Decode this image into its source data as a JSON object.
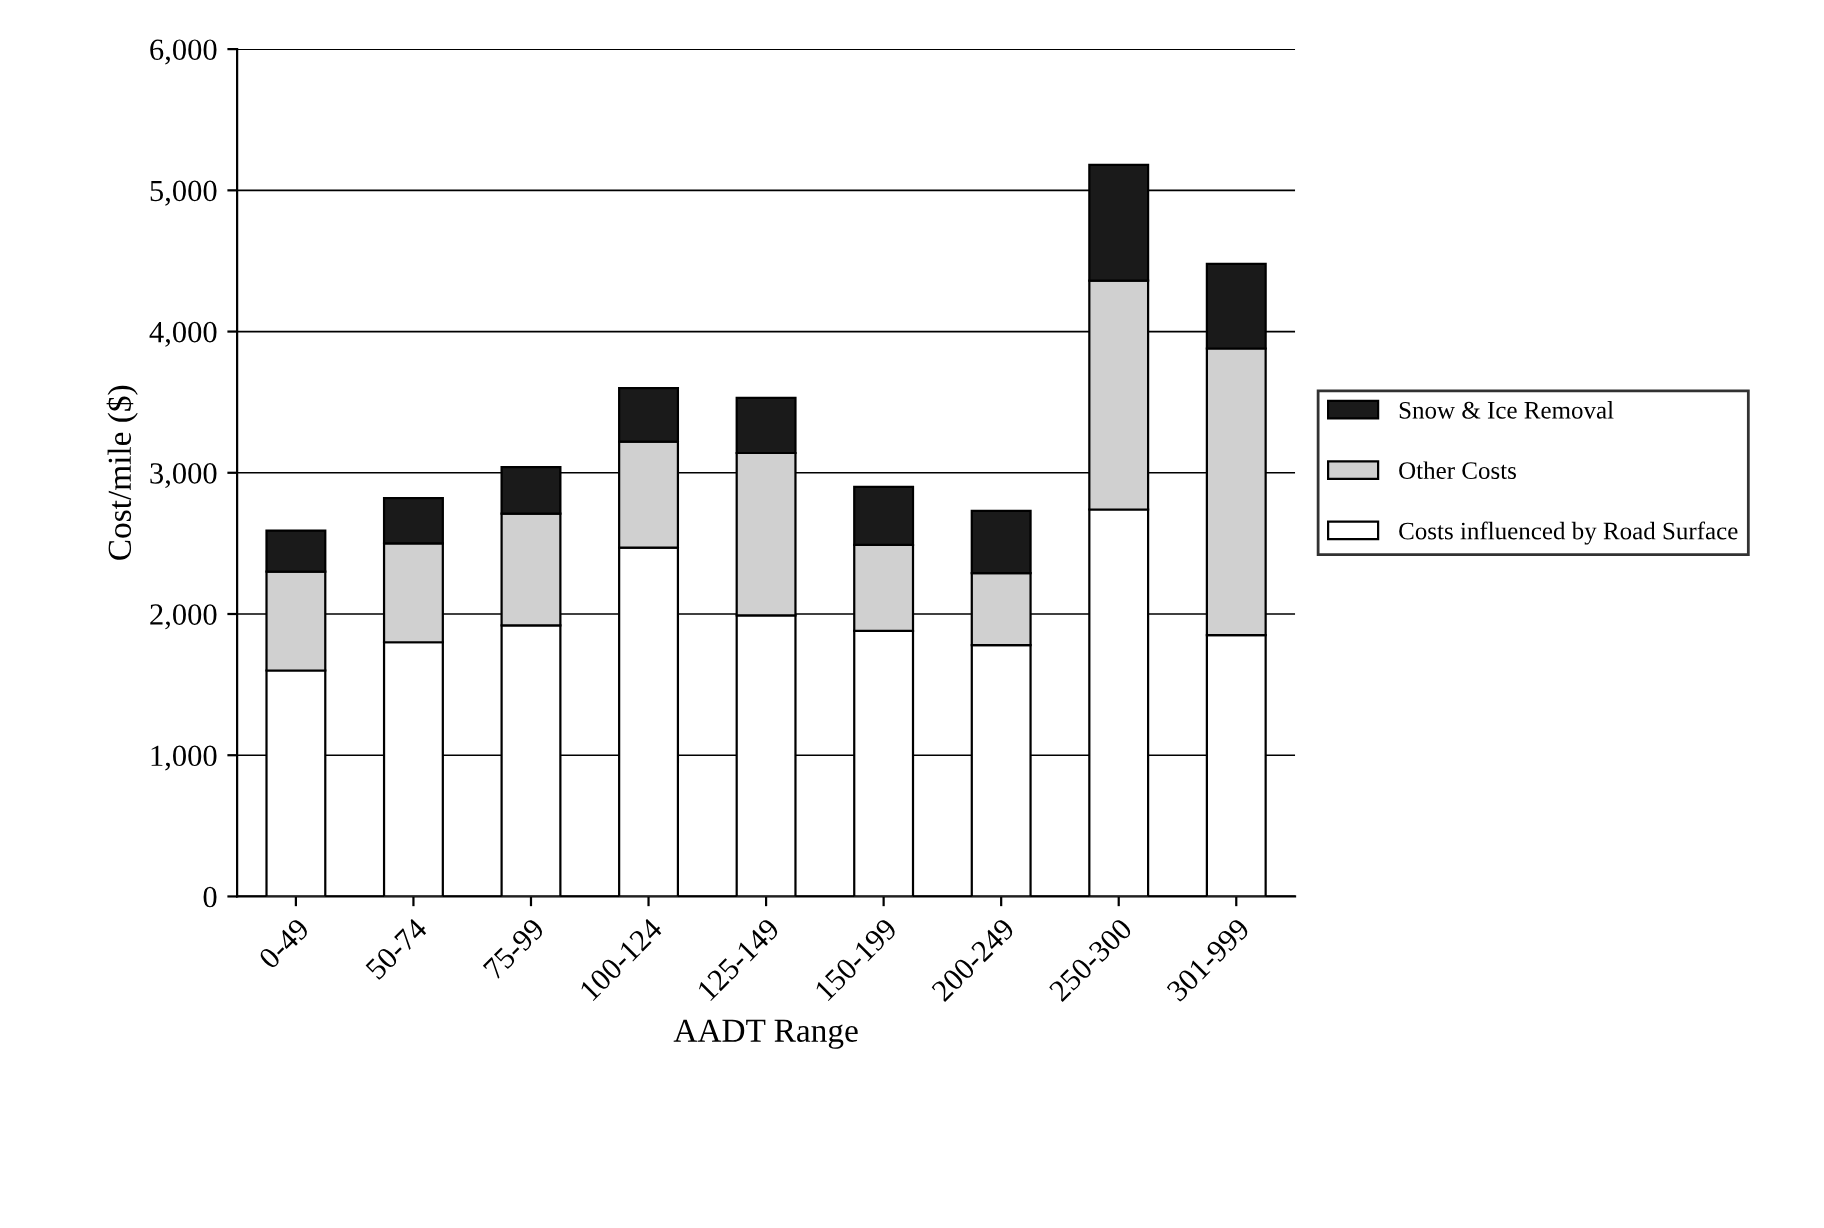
{
  "chart_data": {
    "type": "bar",
    "stacked": true,
    "xlabel": "AADT Range",
    "ylabel": "Cost/mile ($)",
    "categories": [
      "0-49",
      "50-74",
      "75-99",
      "100-124",
      "125-149",
      "150-199",
      "200-249",
      "250-300",
      "301-999"
    ],
    "series": [
      {
        "name": "Costs influenced by Road Surface",
        "color": "#ffffff",
        "values": [
          1600,
          1800,
          1920,
          2470,
          1990,
          1880,
          1780,
          2740,
          1850
        ]
      },
      {
        "name": "Other Costs",
        "color": "#d0d0d0",
        "values": [
          700,
          700,
          790,
          750,
          1150,
          610,
          510,
          1620,
          2030
        ]
      },
      {
        "name": "Snow & Ice Removal",
        "color": "#1a1a1a",
        "values": [
          290,
          320,
          330,
          380,
          390,
          410,
          440,
          820,
          600
        ]
      }
    ],
    "ylim": [
      0,
      6000
    ],
    "yticks": [
      {
        "value": 0,
        "label": "0"
      },
      {
        "value": 1000,
        "label": "1,000"
      },
      {
        "value": 2000,
        "label": "2,000"
      },
      {
        "value": 3000,
        "label": "3,000"
      },
      {
        "value": 4000,
        "label": "4,000"
      },
      {
        "value": 5000,
        "label": "5,000"
      },
      {
        "value": 6000,
        "label": "6,000"
      }
    ],
    "grid": "y",
    "legend": "right"
  }
}
